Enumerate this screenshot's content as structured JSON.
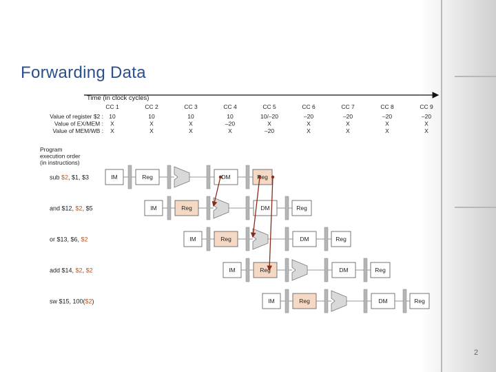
{
  "slide": {
    "title": "Forwarding Data",
    "page_number": "2"
  },
  "diagram": {
    "time_label": "Time (in clock cycles)",
    "cycles": [
      "CC 1",
      "CC 2",
      "CC 3",
      "CC 4",
      "CC 5",
      "CC 6",
      "CC 7",
      "CC 8",
      "CC 9"
    ],
    "value_rows": [
      {
        "label": "Value of register $2 :",
        "values": [
          "10",
          "10",
          "10",
          "10",
          "10/–20",
          "–20",
          "–20",
          "–20",
          "–20"
        ]
      },
      {
        "label": "Value of EX/MEM :",
        "values": [
          "X",
          "X",
          "X",
          "–20",
          "X",
          "X",
          "X",
          "X",
          "X"
        ]
      },
      {
        "label": "Value of MEM/WB :",
        "values": [
          "X",
          "X",
          "X",
          "X",
          "–20",
          "X",
          "X",
          "X",
          "X"
        ]
      }
    ],
    "program_label": [
      "Program",
      "execution order",
      "(in instructions)"
    ],
    "instructions": [
      {
        "parts": [
          {
            "t": "sub ",
            "h": false
          },
          {
            "t": "$2",
            "h": true
          },
          {
            "t": ", $1, $3",
            "h": false
          }
        ],
        "start": 0
      },
      {
        "parts": [
          {
            "t": "and $12, ",
            "h": false
          },
          {
            "t": "$2",
            "h": true
          },
          {
            "t": ", $5",
            "h": false
          }
        ],
        "start": 1
      },
      {
        "parts": [
          {
            "t": "or $13, $6, ",
            "h": false
          },
          {
            "t": "$2",
            "h": true
          }
        ],
        "start": 2
      },
      {
        "parts": [
          {
            "t": "add $14, ",
            "h": false
          },
          {
            "t": "$2",
            "h": true
          },
          {
            "t": ", ",
            "h": false
          },
          {
            "t": "$2",
            "h": true
          }
        ],
        "start": 3
      },
      {
        "parts": [
          {
            "t": "sw $15, 100(",
            "h": false
          },
          {
            "t": "$2",
            "h": true
          },
          {
            "t": ")",
            "h": false
          }
        ],
        "start": 4
      }
    ],
    "stage_labels": {
      "im": "IM",
      "reg": "Reg",
      "dm": "DM"
    },
    "colors": {
      "highlight": "#b8561e",
      "reg_highlight": "#f6d9c4",
      "forward_line": "#8b2a1a",
      "grey": "#b5b5b5",
      "box_border": "#555555"
    }
  }
}
